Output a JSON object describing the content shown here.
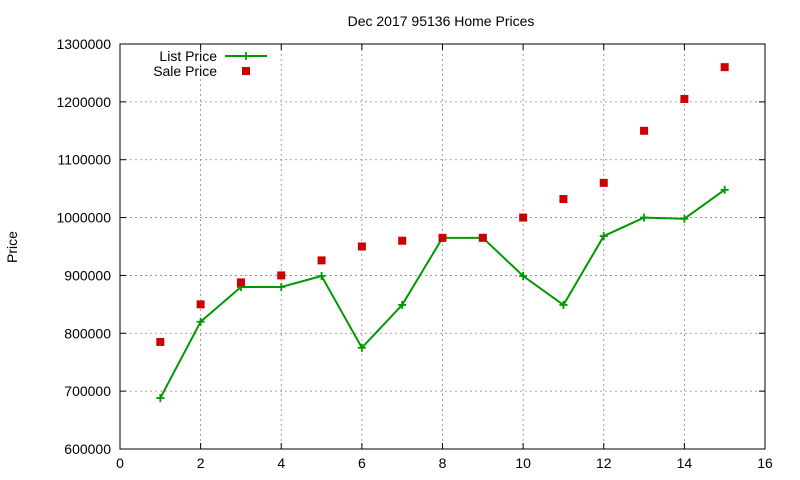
{
  "chart_data": {
    "type": "line",
    "title": "Dec 2017 95136 Home Prices",
    "xlabel": "",
    "ylabel": "Price",
    "xlim": [
      0,
      16
    ],
    "ylim": [
      600000,
      1300000
    ],
    "x_ticks": [
      0,
      2,
      4,
      6,
      8,
      10,
      12,
      14,
      16
    ],
    "y_ticks": [
      600000,
      700000,
      800000,
      900000,
      1000000,
      1100000,
      1200000,
      1300000
    ],
    "x_tick_labels": [
      "0",
      "2",
      "4",
      "6",
      "8",
      "10",
      "12",
      "14",
      "16"
    ],
    "y_tick_labels": [
      "600000",
      "700000",
      "800000",
      "900000",
      "1000000",
      "1100000",
      "1200000",
      "1300000"
    ],
    "grid": true,
    "legend_position": "top-left",
    "series": [
      {
        "name": "List Price",
        "style": "line-plus-markers",
        "color": "#009900",
        "x": [
          1,
          2,
          3,
          4,
          5,
          6,
          7,
          8,
          9,
          10,
          11,
          12,
          13,
          14,
          15
        ],
        "y": [
          688000,
          820000,
          880000,
          880000,
          899000,
          775000,
          849000,
          965000,
          965000,
          899000,
          849000,
          968000,
          1000000,
          998000,
          1048000
        ]
      },
      {
        "name": "Sale Price",
        "style": "square-markers",
        "color": "#cc0000",
        "x": [
          1,
          2,
          3,
          4,
          5,
          6,
          7,
          8,
          9,
          10,
          11,
          12,
          13,
          14,
          15
        ],
        "y": [
          785000,
          850000,
          888000,
          900000,
          926000,
          950000,
          960000,
          965000,
          965000,
          1000000,
          1032000,
          1060000,
          1150000,
          1205000,
          1260000
        ]
      }
    ]
  }
}
